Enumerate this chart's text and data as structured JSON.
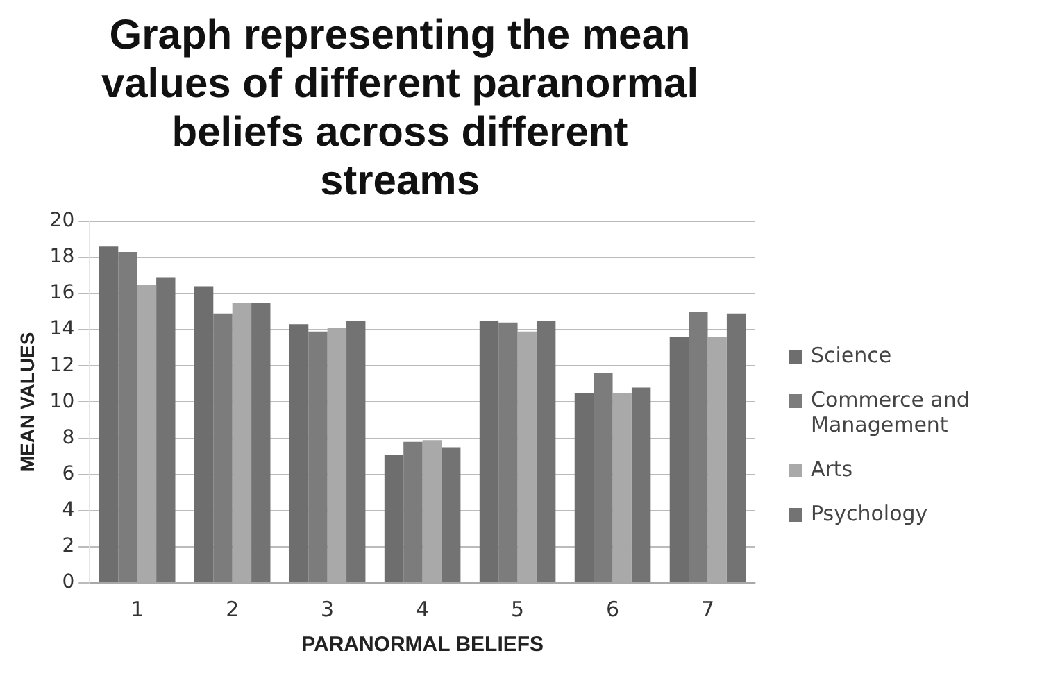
{
  "chart_data": {
    "type": "bar",
    "title": "Graph representing the mean values of different paranormal beliefs across different streams",
    "xlabel": "PARANORMAL BELIEFS",
    "ylabel": "MEAN VALUES",
    "categories": [
      "1",
      "2",
      "3",
      "4",
      "5",
      "6",
      "7"
    ],
    "series": [
      {
        "name": "Science",
        "color": "#6e6e6e",
        "values": [
          18.6,
          16.4,
          14.3,
          7.1,
          14.5,
          10.5,
          13.6
        ]
      },
      {
        "name": "Commerce and Management",
        "color": "#7c7c7c",
        "values": [
          18.3,
          14.9,
          13.9,
          7.8,
          14.4,
          11.6,
          15.0
        ]
      },
      {
        "name": "Arts",
        "color": "#a9a9a9",
        "values": [
          16.5,
          15.5,
          14.1,
          7.9,
          13.9,
          10.5,
          13.6
        ]
      },
      {
        "name": "Psychology",
        "color": "#737373",
        "values": [
          16.9,
          15.5,
          14.5,
          7.5,
          14.5,
          10.8,
          14.9
        ]
      }
    ],
    "ylim": [
      0,
      20
    ],
    "yticks": [
      0,
      2,
      4,
      6,
      8,
      10,
      12,
      14,
      16,
      18,
      20
    ],
    "grid": "y",
    "legend": "right"
  }
}
